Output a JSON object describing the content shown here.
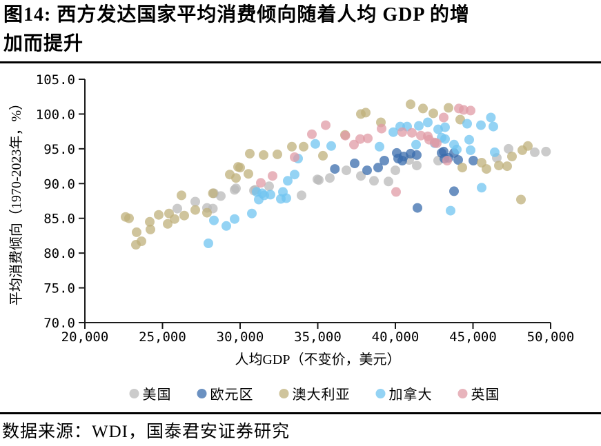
{
  "title": {
    "line1": "图14:  西方发达国家平均消费倾向随着人均 GDP 的增",
    "line2": "加而提升"
  },
  "source": "数据来源：WDI，国泰君安证券研究",
  "chart_data": {
    "type": "scatter",
    "title": "西方发达国家平均消费倾向随着人均GDP的增加而提升",
    "xlabel": "人均GDP（不变价，美元）",
    "ylabel": "平均消费倾向（1970-2023年，%）",
    "xlim": [
      20000,
      50000
    ],
    "ylim": [
      70,
      105
    ],
    "x_ticks": [
      "20,000",
      "25,000",
      "30,000",
      "35,000",
      "40,000",
      "45,000",
      "50,000"
    ],
    "x_tick_values": [
      20000,
      25000,
      30000,
      35000,
      40000,
      45000,
      50000
    ],
    "y_ticks": [
      "70.0",
      "75.0",
      "80.0",
      "85.0",
      "90.0",
      "95.0",
      "100.0",
      "105.0"
    ],
    "y_tick_values": [
      70,
      75,
      80,
      85,
      90,
      95,
      100,
      105
    ],
    "grid": false,
    "legend_position": "bottom",
    "marker_opacity": 0.75,
    "series": [
      {
        "name": "美国",
        "color": "#bababa",
        "points": [
          [
            25956,
            86.4
          ],
          [
            27111,
            87.4
          ],
          [
            27867,
            86.5
          ],
          [
            28244,
            86.4
          ],
          [
            28311,
            88.6
          ],
          [
            28756,
            88.2
          ],
          [
            29644,
            89.1
          ],
          [
            29733,
            89.3
          ],
          [
            30889,
            89.0
          ],
          [
            30978,
            89.1
          ],
          [
            31867,
            89.6
          ],
          [
            33956,
            88.3
          ],
          [
            34978,
            90.6
          ],
          [
            35067,
            90.5
          ],
          [
            35778,
            90.8
          ],
          [
            36844,
            91.9
          ],
          [
            37778,
            91.1
          ],
          [
            38622,
            90.4
          ],
          [
            39556,
            90.3
          ],
          [
            40000,
            91.9
          ],
          [
            40889,
            93.4
          ],
          [
            41378,
            92.6
          ],
          [
            42756,
            93.3
          ],
          [
            46533,
            93.7
          ],
          [
            47289,
            95.0
          ],
          [
            48978,
            94.5
          ],
          [
            49700,
            94.6
          ]
        ]
      },
      {
        "name": "欧元区",
        "color": "#3a6cac",
        "points": [
          [
            36100,
            92.1
          ],
          [
            37380,
            92.9
          ],
          [
            38178,
            91.9
          ],
          [
            38889,
            92.3
          ],
          [
            39289,
            93.3
          ],
          [
            40089,
            94.4
          ],
          [
            40178,
            93.6
          ],
          [
            40444,
            93.3
          ],
          [
            40533,
            93.9
          ],
          [
            40978,
            94.3
          ],
          [
            41378,
            94.1
          ],
          [
            41422,
            86.5
          ],
          [
            42978,
            94.4
          ],
          [
            43111,
            94.6
          ],
          [
            43156,
            93.6
          ],
          [
            43422,
            93.7
          ],
          [
            43778,
            94.4
          ],
          [
            43778,
            88.9
          ],
          [
            44044,
            93.4
          ],
          [
            45022,
            93.3
          ]
        ]
      },
      {
        "name": "澳大利亚",
        "color": "#bfb07b",
        "points": [
          [
            22622,
            85.2
          ],
          [
            22844,
            85.0
          ],
          [
            23289,
            81.2
          ],
          [
            23333,
            83.0
          ],
          [
            23644,
            81.7
          ],
          [
            24178,
            84.5
          ],
          [
            24222,
            83.4
          ],
          [
            24756,
            85.5
          ],
          [
            25333,
            84.2
          ],
          [
            25422,
            85.7
          ],
          [
            25778,
            84.9
          ],
          [
            26222,
            88.3
          ],
          [
            26400,
            85.4
          ],
          [
            27111,
            86.2
          ],
          [
            27867,
            85.8
          ],
          [
            28244,
            88.6
          ],
          [
            29333,
            91.3
          ],
          [
            29733,
            90.8
          ],
          [
            29867,
            92.4
          ],
          [
            30000,
            92.3
          ],
          [
            30533,
            91.4
          ],
          [
            30622,
            94.3
          ],
          [
            31511,
            94.1
          ],
          [
            32400,
            94.2
          ],
          [
            33333,
            95.3
          ],
          [
            34089,
            95.3
          ],
          [
            35333,
            94.0
          ],
          [
            36756,
            97.0
          ],
          [
            37778,
            100.0
          ],
          [
            38089,
            100.2
          ],
          [
            39067,
            98.8
          ],
          [
            40978,
            101.4
          ],
          [
            41778,
            100.8
          ],
          [
            42444,
            100.1
          ],
          [
            43422,
            100.9
          ],
          [
            44178,
            99.2
          ],
          [
            44311,
            92.3
          ],
          [
            45556,
            93.0
          ],
          [
            45867,
            92.1
          ],
          [
            46667,
            92.6
          ],
          [
            47200,
            92.5
          ],
          [
            47511,
            93.9
          ],
          [
            48089,
            87.7
          ],
          [
            48178,
            94.8
          ],
          [
            48533,
            95.4
          ]
        ]
      },
      {
        "name": "加拿大",
        "color": "#70c4f0",
        "points": [
          [
            27956,
            81.4
          ],
          [
            28311,
            84.7
          ],
          [
            29111,
            83.9
          ],
          [
            29644,
            84.9
          ],
          [
            30756,
            85.7
          ],
          [
            31067,
            88.8
          ],
          [
            31200,
            87.7
          ],
          [
            31422,
            88.6
          ],
          [
            31556,
            88.3
          ],
          [
            31956,
            88.4
          ],
          [
            32622,
            87.8
          ],
          [
            32756,
            88.8
          ],
          [
            32978,
            87.9
          ],
          [
            33067,
            90.4
          ],
          [
            33511,
            91.3
          ],
          [
            33733,
            93.6
          ],
          [
            34844,
            95.7
          ],
          [
            35867,
            95.4
          ],
          [
            38978,
            95.3
          ],
          [
            39867,
            97.4
          ],
          [
            40311,
            98.2
          ],
          [
            40756,
            98.2
          ],
          [
            41333,
            95.6
          ],
          [
            41511,
            98.3
          ],
          [
            42089,
            98.8
          ],
          [
            42533,
            95.8
          ],
          [
            42756,
            97.8
          ],
          [
            42978,
            96.6
          ],
          [
            43200,
            96.4
          ],
          [
            43200,
            98.1
          ],
          [
            43556,
            86.1
          ],
          [
            43778,
            95.6
          ],
          [
            43956,
            94.9
          ],
          [
            44622,
            98.6
          ],
          [
            44756,
            96.3
          ],
          [
            44844,
            94.8
          ],
          [
            45511,
            98.4
          ],
          [
            45556,
            89.4
          ],
          [
            46150,
            99.5
          ],
          [
            46311,
            98.2
          ],
          [
            46400,
            94.5
          ]
        ]
      },
      {
        "name": "英国",
        "color": "#e09ba6",
        "points": [
          [
            31333,
            90.1
          ],
          [
            32089,
            91.1
          ],
          [
            33511,
            93.8
          ],
          [
            34622,
            97.1
          ],
          [
            35511,
            98.4
          ],
          [
            36778,
            96.9
          ],
          [
            37333,
            95.6
          ],
          [
            37733,
            96.4
          ],
          [
            38222,
            96.5
          ],
          [
            39111,
            97.9
          ],
          [
            40044,
            88.8
          ],
          [
            40444,
            97.4
          ],
          [
            41067,
            97.3
          ],
          [
            41644,
            96.9
          ],
          [
            42089,
            96.8
          ],
          [
            42178,
            96.3
          ],
          [
            42533,
            95.9
          ],
          [
            42667,
            95.8
          ],
          [
            43111,
            99.5
          ],
          [
            43333,
            93.3
          ],
          [
            44089,
            100.8
          ],
          [
            44400,
            100.6
          ],
          [
            44844,
            100.5
          ]
        ]
      }
    ]
  }
}
